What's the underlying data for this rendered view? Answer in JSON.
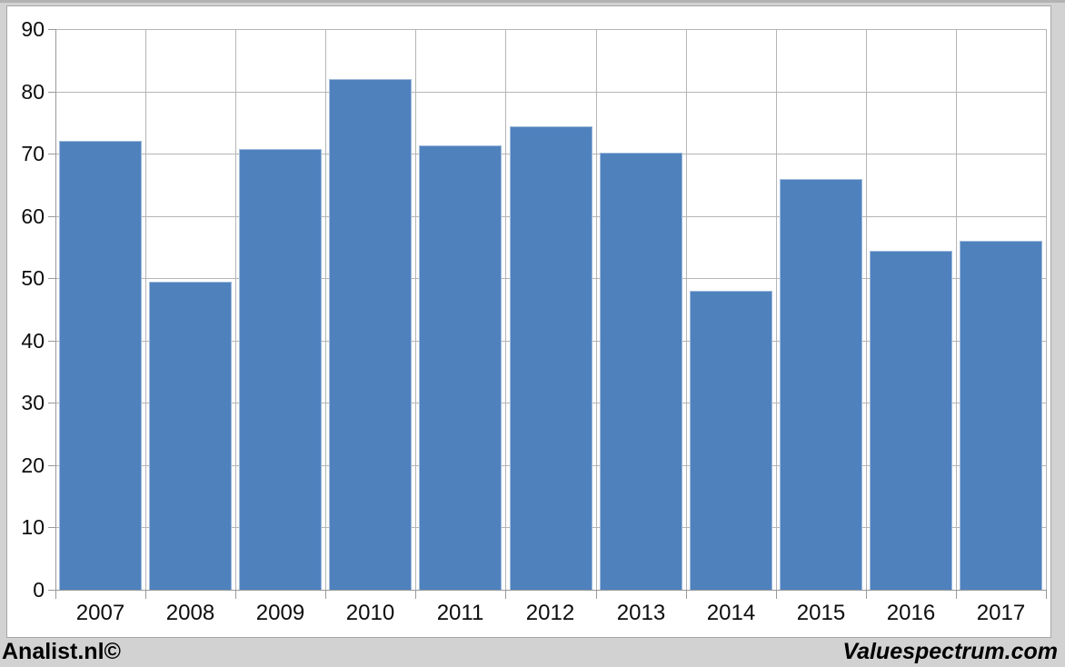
{
  "chart_data": {
    "type": "bar",
    "categories": [
      "2007",
      "2008",
      "2009",
      "2010",
      "2011",
      "2012",
      "2013",
      "2014",
      "2015",
      "2016",
      "2017"
    ],
    "values": [
      72,
      49.5,
      70.8,
      82,
      71.4,
      74.4,
      70.1,
      48,
      66,
      54.4,
      56
    ],
    "title": "",
    "xlabel": "",
    "ylabel": "",
    "ylim": [
      0,
      90
    ],
    "ytick_step": 10,
    "grid": true,
    "legend": false,
    "bar_color": "#4f81bd"
  },
  "footer": {
    "left": "Analist.nl©",
    "right": "Valuespectrum.com"
  },
  "colors": {
    "page_bg": "#d2d2d2",
    "panel_bg": "#ffffff",
    "panel_border": "#a6a6a6",
    "gridline": "#b5b5b5",
    "axis": "#999999",
    "bar": "#4f81bd",
    "text": "#0d0d0d"
  }
}
